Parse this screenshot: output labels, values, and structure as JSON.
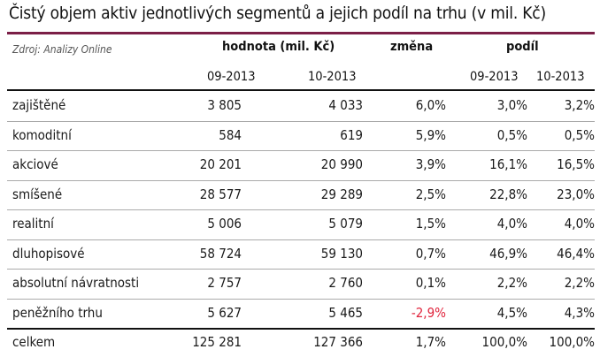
{
  "title": "Čistý objem aktiv jednotlivých segmentů a jejich podíl na trhu (v mil. Kč)",
  "source": "Zdroj: Analizy Online",
  "headers": {
    "value": "hodnota (mil. Kč)",
    "change": "změna",
    "share": "podíl",
    "value_09": "09-2013",
    "value_10": "10-2013",
    "share_09": "09-2013",
    "share_10": "10-2013"
  },
  "rows": [
    {
      "label": "zajištěné",
      "v09": "3 805",
      "v10": "4 033",
      "change": "6,0%",
      "s09": "3,0%",
      "s10": "3,2%"
    },
    {
      "label": "komoditní",
      "v09": "584",
      "v10": "619",
      "change": "5,9%",
      "s09": "0,5%",
      "s10": "0,5%"
    },
    {
      "label": "akciové",
      "v09": "20 201",
      "v10": "20 990",
      "change": "3,9%",
      "s09": "16,1%",
      "s10": "16,5%"
    },
    {
      "label": "smíšené",
      "v09": "28 577",
      "v10": "29 289",
      "change": "2,5%",
      "s09": "22,8%",
      "s10": "23,0%"
    },
    {
      "label": "realitní",
      "v09": "5 006",
      "v10": "5 079",
      "change": "1,5%",
      "s09": "4,0%",
      "s10": "4,0%"
    },
    {
      "label": "dluhopisové",
      "v09": "58 724",
      "v10": "59 130",
      "change": "0,7%",
      "s09": "46,9%",
      "s10": "46,4%"
    },
    {
      "label": "absolutní návratnosti",
      "v09": "2 757",
      "v10": "2 760",
      "change": "0,1%",
      "s09": "2,2%",
      "s10": "2,2%"
    },
    {
      "label": "peněžního trhu",
      "v09": "5 627",
      "v10": "5 465",
      "change": "-2,9%",
      "s09": "4,5%",
      "s10": "4,3%"
    }
  ],
  "total": {
    "label": "celkem",
    "v09": "125 281",
    "v10": "127 366",
    "change": "1,7%",
    "s09": "100,0%",
    "s10": "100,0%"
  },
  "colors": {
    "accent_rule": "#7b1f47",
    "negative": "#e0243c"
  }
}
